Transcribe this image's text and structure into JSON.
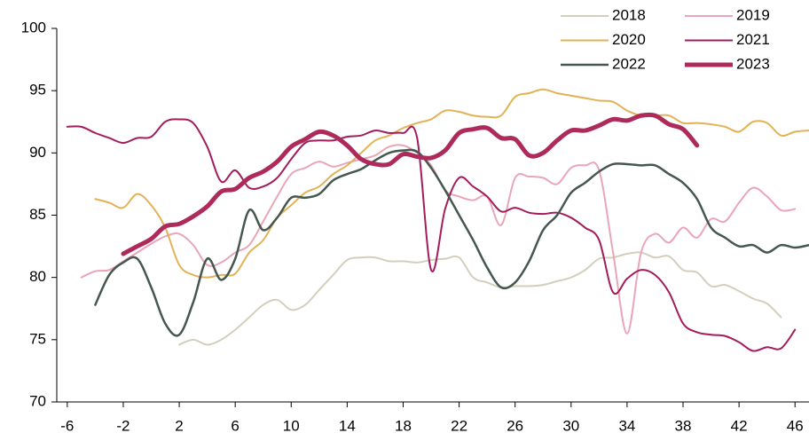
{
  "chart_data": {
    "type": "line",
    "x": [
      -6,
      -5,
      -4,
      -3,
      -2,
      -1,
      0,
      1,
      2,
      3,
      4,
      5,
      6,
      7,
      8,
      9,
      10,
      11,
      12,
      13,
      14,
      15,
      16,
      17,
      18,
      19,
      20,
      21,
      22,
      23,
      24,
      25,
      26,
      27,
      28,
      29,
      30,
      31,
      32,
      33,
      34,
      35,
      36,
      37,
      38,
      39,
      40,
      41,
      42,
      43,
      44,
      45,
      46,
      47
    ],
    "xlim": [
      -6.75,
      47
    ],
    "xticks": [
      -6,
      -2,
      2,
      6,
      10,
      14,
      18,
      22,
      26,
      30,
      34,
      38,
      42,
      46
    ],
    "ylim": [
      70,
      100
    ],
    "yticks": [
      70,
      75,
      80,
      85,
      90,
      95,
      100
    ],
    "legend": "top-right",
    "series": [
      {
        "name": "2018",
        "color": "#d3cfbd",
        "width": 2,
        "values": [
          null,
          null,
          null,
          null,
          null,
          null,
          null,
          null,
          74.6,
          75.0,
          74.6,
          75.0,
          75.8,
          76.8,
          77.8,
          78.2,
          77.4,
          77.8,
          79.0,
          80.2,
          81.4,
          81.6,
          81.6,
          81.3,
          81.3,
          81.2,
          81.4,
          81.5,
          81.6,
          80.0,
          79.6,
          79.2,
          79.3,
          79.3,
          79.4,
          79.7,
          80.0,
          80.6,
          81.5,
          81.6,
          81.9,
          82.0,
          81.6,
          81.7,
          80.6,
          80.4,
          79.3,
          79.4,
          78.9,
          78.3,
          77.9,
          76.8,
          null,
          null
        ]
      },
      {
        "name": "2019",
        "color": "#e9a6b8",
        "width": 2,
        "values": [
          null,
          80.0,
          80.5,
          80.6,
          81.3,
          82.0,
          82.7,
          83.3,
          83.5,
          82.6,
          81.0,
          81.2,
          82.0,
          82.6,
          84.5,
          86.5,
          88.3,
          88.8,
          89.3,
          88.9,
          89.2,
          89.5,
          89.8,
          90.5,
          90.6,
          90.0,
          89.0,
          87.0,
          86.5,
          86.2,
          86.5,
          84.2,
          88.0,
          88.1,
          88.0,
          87.5,
          88.8,
          89.0,
          88.6,
          82.0,
          75.5,
          82.0,
          83.5,
          82.8,
          84.0,
          83.2,
          84.7,
          84.5,
          86.0,
          87.2,
          86.5,
          85.4,
          85.5,
          null
        ]
      },
      {
        "name": "2020",
        "color": "#e2b257",
        "width": 2,
        "values": [
          null,
          null,
          86.3,
          86.0,
          85.6,
          86.7,
          85.8,
          84.0,
          81.0,
          80.2,
          80.0,
          80.2,
          80.3,
          82.0,
          83.0,
          84.8,
          85.8,
          86.8,
          87.3,
          88.3,
          89.0,
          90.0,
          91.0,
          91.4,
          92.0,
          92.4,
          92.7,
          93.4,
          93.3,
          93.0,
          92.9,
          93.0,
          94.5,
          94.8,
          95.1,
          94.8,
          94.6,
          94.4,
          94.2,
          94.1,
          93.4,
          93.0,
          93.0,
          93.0,
          92.4,
          92.4,
          92.3,
          92.1,
          91.7,
          92.5,
          92.4,
          91.4,
          91.7,
          91.8
        ]
      },
      {
        "name": "2021",
        "color": "#a31c5c",
        "width": 2,
        "values": [
          92.1,
          92.1,
          91.6,
          91.2,
          90.8,
          91.2,
          91.3,
          92.5,
          92.7,
          92.4,
          90.5,
          87.7,
          88.6,
          87.2,
          87.3,
          88.0,
          89.5,
          90.8,
          91.0,
          91.0,
          91.3,
          91.4,
          91.8,
          91.6,
          91.6,
          91.2,
          80.6,
          85.5,
          88.0,
          87.3,
          86.5,
          85.3,
          85.6,
          85.2,
          85.1,
          85.2,
          84.8,
          84.0,
          83.0,
          78.8,
          79.9,
          80.6,
          80.2,
          78.8,
          76.3,
          75.6,
          75.4,
          75.3,
          74.8,
          74.1,
          74.4,
          74.3,
          75.8,
          null
        ]
      },
      {
        "name": "2022",
        "color": "#46574f",
        "width": 2.5,
        "values": [
          null,
          null,
          77.8,
          80.2,
          81.2,
          81.5,
          79.2,
          76.3,
          75.4,
          78.0,
          81.5,
          79.8,
          81.5,
          85.4,
          83.8,
          84.8,
          86.4,
          86.4,
          86.7,
          87.8,
          88.3,
          88.7,
          89.4,
          90.0,
          90.2,
          90.1,
          88.8,
          87.0,
          85.0,
          83.0,
          80.8,
          79.2,
          79.6,
          81.3,
          83.8,
          85.0,
          86.8,
          87.6,
          88.5,
          89.1,
          89.1,
          89.0,
          89.0,
          88.3,
          87.6,
          86.3,
          84.0,
          83.2,
          82.5,
          82.6,
          82.0,
          82.6,
          82.4,
          82.6
        ]
      },
      {
        "name": "2023",
        "color": "#ad2a5a",
        "width": 5,
        "values": [
          null,
          null,
          null,
          null,
          81.9,
          82.5,
          83.1,
          84.1,
          84.3,
          84.9,
          85.7,
          86.9,
          87.1,
          88.0,
          88.5,
          89.3,
          90.5,
          91.1,
          91.7,
          91.4,
          90.6,
          89.5,
          89.1,
          89.1,
          89.9,
          89.7,
          89.6,
          90.2,
          91.6,
          91.9,
          92.0,
          91.2,
          91.1,
          89.8,
          90.0,
          91.0,
          91.8,
          91.8,
          92.2,
          92.7,
          92.6,
          93.0,
          93.0,
          92.3,
          91.9,
          90.6,
          null,
          null,
          null,
          null,
          null,
          null,
          null,
          null
        ]
      }
    ]
  }
}
